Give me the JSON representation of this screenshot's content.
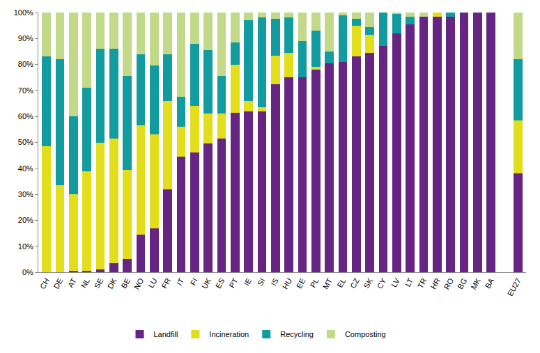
{
  "chart_data": {
    "type": "bar",
    "stacked": true,
    "grid": false,
    "legend": "bottom",
    "categories": [
      "CH",
      "DE",
      "AT",
      "NL",
      "SE",
      "DK",
      "BE",
      "NO",
      "LU",
      "FR",
      "IT",
      "FI",
      "UK",
      "ES",
      "PT",
      "IE",
      "SI",
      "IS",
      "HU",
      "EE",
      "PL",
      "MT",
      "EL",
      "CZ",
      "SK",
      "CY",
      "LV",
      "LT",
      "TR",
      "HR",
      "RO",
      "BG",
      "MK",
      "BA",
      null,
      "EU27"
    ],
    "series": [
      {
        "name": "Landfill",
        "color": "#662483",
        "values": [
          0,
          0,
          0.5,
          0.5,
          1,
          3.5,
          5,
          14.5,
          17,
          32,
          44.5,
          46,
          49.5,
          51.5,
          61.5,
          62,
          62,
          72.5,
          75,
          75,
          78,
          80.5,
          81,
          83,
          84.5,
          87,
          92,
          95.5,
          98.5,
          98.5,
          98.5,
          100,
          100,
          100,
          null,
          38
        ]
      },
      {
        "name": "Incineration",
        "color": "#e3de1c",
        "values": [
          48.5,
          33.5,
          29.5,
          38.5,
          49,
          48,
          34.5,
          42,
          36,
          34,
          11.5,
          18,
          11.5,
          9.5,
          18.5,
          4,
          1.5,
          11,
          9.5,
          0,
          1,
          0,
          0,
          12,
          7,
          0,
          0,
          0,
          0,
          1.5,
          0,
          0,
          0,
          0,
          null,
          20.5
        ]
      },
      {
        "name": "Recycling",
        "color": "#139ca0",
        "values": [
          34.5,
          48.5,
          30,
          32,
          36,
          34.5,
          36,
          27.5,
          26.5,
          18,
          11.5,
          24,
          24.5,
          14.5,
          8.5,
          31,
          34.5,
          14,
          13.5,
          14,
          14,
          4.5,
          18,
          2.5,
          3,
          13,
          7.5,
          3,
          0,
          0,
          1.5,
          0,
          0,
          0,
          null,
          23.5
        ]
      },
      {
        "name": "Composting",
        "color": "#c3d98a",
        "values": [
          17,
          18,
          40,
          29,
          14,
          14,
          24.5,
          16,
          20.5,
          16,
          32.5,
          12,
          14.5,
          24.5,
          11.5,
          3,
          2,
          2.5,
          2,
          11,
          7,
          15,
          1,
          2.5,
          5.5,
          0,
          0.5,
          1.5,
          1.5,
          0,
          0,
          0,
          0,
          0,
          null,
          18
        ]
      }
    ],
    "ylim": [
      0,
      100
    ],
    "yticks": [
      {
        "value": 0,
        "label": "0%"
      },
      {
        "value": 10,
        "label": "10%"
      },
      {
        "value": 20,
        "label": "20%"
      },
      {
        "value": 30,
        "label": "30%"
      },
      {
        "value": 40,
        "label": "40%"
      },
      {
        "value": 50,
        "label": "50%"
      },
      {
        "value": 60,
        "label": "60%"
      },
      {
        "value": 70,
        "label": "70%"
      },
      {
        "value": 80,
        "label": "80%"
      },
      {
        "value": 90,
        "label": "90%"
      },
      {
        "value": 100,
        "label": "100%"
      }
    ]
  }
}
